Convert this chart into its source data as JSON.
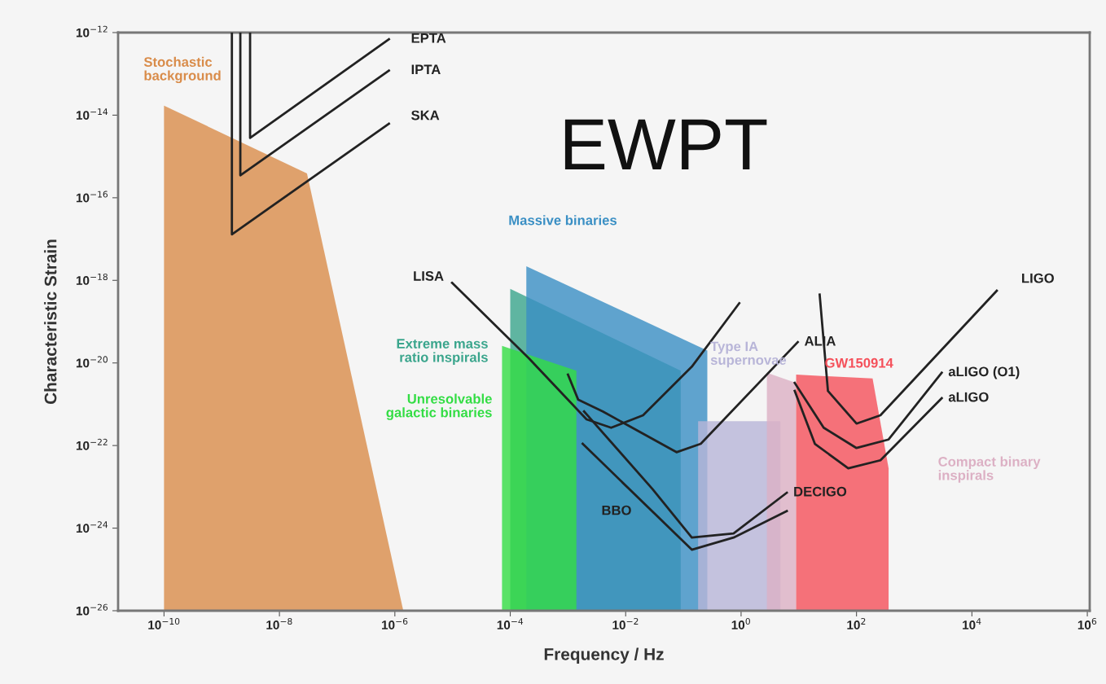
{
  "chart_data": {
    "type": "area",
    "xlabel": "Frequency / Hz",
    "ylabel": "Characteristic Strain",
    "annotations": [
      "EWPT"
    ],
    "log": "xy",
    "grid": false,
    "legend": false,
    "xlim": [
      1.6e-11,
      1100000.0
    ],
    "ylim": [
      1e-26,
      1e-12
    ],
    "xticks": [
      {
        "value": 1e-10,
        "label": "10$^{−10}$"
      },
      {
        "value": 1e-08,
        "label": "10$^{−8}$"
      },
      {
        "value": 1e-06,
        "label": "10$^{−6}$"
      },
      {
        "value": 0.0001,
        "label": "10$^{−4}$"
      },
      {
        "value": 0.01,
        "label": "10$^{−2}$"
      },
      {
        "value": 1,
        "label": "10$^{0}$"
      },
      {
        "value": 100.0,
        "label": "10$^{2}$"
      },
      {
        "value": 10000.0,
        "label": "10$^{4}$"
      },
      {
        "value": 1000000.0,
        "label": "10$^{6}$"
      }
    ],
    "yticks": [
      {
        "value": 1e-26,
        "label": "10$^{−26}$"
      },
      {
        "value": 1e-24,
        "label": "10$^{−24}$"
      },
      {
        "value": 1e-22,
        "label": "10$^{−22}$"
      },
      {
        "value": 1e-20,
        "label": "10$^{−20}$"
      },
      {
        "value": 1e-18,
        "label": "10$^{−18}$"
      },
      {
        "value": 1e-16,
        "label": "10$^{−16}$"
      },
      {
        "value": 1e-14,
        "label": "10$^{−14}$"
      },
      {
        "value": 1e-12,
        "label": "10$^{−12}$"
      }
    ],
    "series": [
      {
        "name": "Stochastic\nbackground",
        "color": "#d98c4a",
        "x": [
          1e-10,
          3e-08,
          1.4e-06
        ],
        "values": [
          1.7e-14,
          3.9e-16,
          1e-26
        ]
      },
      {
        "name": "Extreme mass\nratio inspirals",
        "color": "#3aa58c",
        "x": [
          0.0001,
          0.09
        ],
        "values": [
          6.2e-19,
          6.5e-21
        ]
      },
      {
        "name": "Massive binaries",
        "color": "#3a8fc4",
        "x": [
          0.00019,
          0.26
        ],
        "values": [
          2.2e-18,
          2e-20
        ]
      },
      {
        "name": "Unresolvable\ngalactic binaries",
        "color": "#33dd44",
        "x": [
          7.2e-05,
          0.0014
        ],
        "values": [
          2.6e-20,
          6.5e-21
        ]
      },
      {
        "name": "Type IA\nsupernovae",
        "color": "#b8b5d8",
        "x": [
          0.18,
          4.8
        ],
        "values": [
          3.9e-22,
          3.9e-22
        ]
      },
      {
        "name": "Compact binary\ninspirals",
        "color": "#dcb0c4",
        "x": [
          2.8,
          9
        ],
        "values": [
          5.8e-21,
          3.3e-21
        ]
      },
      {
        "name": "GW150914",
        "color": "#f5505a",
        "x": [
          9,
          190,
          360
        ],
        "values": [
          5.2e-21,
          4.2e-21,
          2.8e-23
        ]
      },
      {
        "type": "line",
        "name": "EPTA",
        "color": "#222222",
        "x": [
          3.1e-09,
          3.1e-09,
          7.9e-07
        ],
        "values": [
          1e-12,
          2.8e-15,
          6.9e-13
        ]
      },
      {
        "type": "line",
        "name": "IPTA",
        "color": "#222222",
        "x": [
          2.1e-09,
          2.1e-09,
          7.9e-07
        ],
        "values": [
          1e-12,
          3.5e-16,
          1.2e-13
        ]
      },
      {
        "type": "line",
        "name": "SKA",
        "color": "#222222",
        "x": [
          1.5e-09,
          1.5e-09,
          7.9e-07
        ],
        "values": [
          1e-12,
          1.3e-17,
          6.2e-15
        ]
      },
      {
        "type": "line",
        "name": "LISA",
        "color": "#222222",
        "x": [
          9.8e-06,
          0.00021,
          0.0021,
          0.0056,
          0.02,
          0.14,
          0.93
        ],
        "values": [
          8.7e-19,
          1.3e-20,
          4.3e-22,
          2.7e-22,
          5.4e-22,
          8.1e-21,
          2.8e-19
        ]
      },
      {
        "type": "line",
        "name": "ALIA",
        "color": "#222222",
        "x": [
          0.001,
          0.0015,
          0.004,
          0.076,
          0.2,
          9.6
        ],
        "values": [
          5.2e-21,
          1.3e-21,
          6.7e-22,
          6.9e-23,
          1.1e-22,
          3.2e-20
        ]
      },
      {
        "type": "line",
        "name": "DECIGO",
        "color": "#222222",
        "x": [
          0.0019,
          0.029,
          0.14,
          0.74,
          6.2
        ],
        "values": [
          6.7e-22,
          8.9e-24,
          5.9e-25,
          7.4e-25,
          7.2e-24
        ]
      },
      {
        "type": "line",
        "name": "BBO",
        "color": "#222222",
        "x": [
          0.0018,
          0.14,
          0.74,
          6.2
        ],
        "values": [
          1.1e-22,
          3e-25,
          5.9e-25,
          2.6e-24
        ]
      },
      {
        "type": "line",
        "name": "LIGO",
        "color": "#222222",
        "x": [
          23,
          32,
          100,
          260,
          27000.0
        ],
        "values": [
          4.5e-19,
          2.1e-21,
          3.4e-22,
          5.4e-22,
          5.6e-19
        ]
      },
      {
        "type": "line",
        "name": "aLIGO (O1)",
        "color": "#222222",
        "x": [
          8.5,
          27,
          100,
          360,
          3000.0
        ],
        "values": [
          3.3e-21,
          2.7e-22,
          8.7e-23,
          1.4e-22,
          5.8e-21
        ]
      },
      {
        "type": "line",
        "name": "aLIGO",
        "color": "#222222",
        "x": [
          8.5,
          19,
          72,
          260,
          3000.0
        ],
        "values": [
          2.1e-21,
          1.1e-22,
          2.8e-23,
          4.4e-23,
          1.4e-21
        ]
      }
    ]
  }
}
